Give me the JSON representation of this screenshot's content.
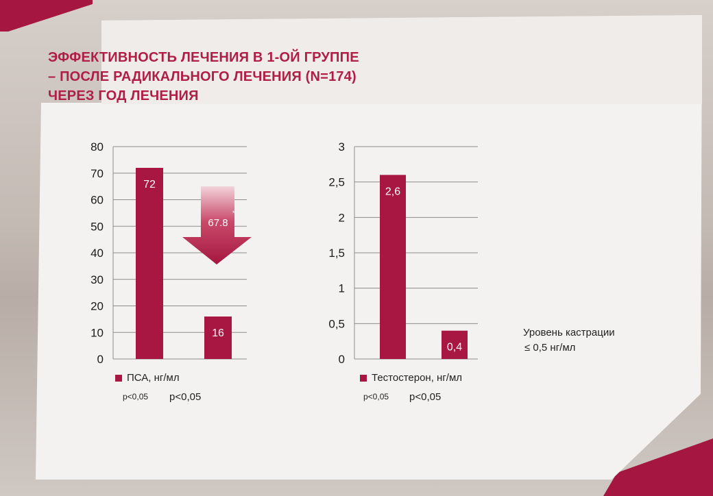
{
  "title_lines": [
    "ЭФФЕКТИВНОСТЬ ЛЕЧЕНИЯ В 1-ОЙ ГРУППЕ",
    "– ПОСЛЕ РАДИКАЛЬНОГО ЛЕЧЕНИЯ (N=174)",
    "ЧЕРЕЗ ГОД ЛЕЧЕНИЯ"
  ],
  "colors": {
    "accent": "#b01e45",
    "bar": "#a81642",
    "panel": "#f3f1f0",
    "gridline": "#8c8c8c"
  },
  "chart_data": [
    {
      "type": "bar",
      "categories": [
        "",
        ""
      ],
      "series": [
        {
          "name": "ПСА, нг/мл",
          "values": [
            72,
            16
          ]
        }
      ],
      "data_labels": [
        "72",
        "16"
      ],
      "yticks": [
        "0",
        "10",
        "20",
        "30",
        "40",
        "50",
        "60",
        "70",
        "80"
      ],
      "ylim": [
        0,
        80
      ],
      "grid": true,
      "legend_position": "bottom-left",
      "annotation": {
        "text": "67.8",
        "marker": "*",
        "shape": "down-arrow"
      }
    },
    {
      "type": "bar",
      "categories": [
        "",
        ""
      ],
      "series": [
        {
          "name": "Тестостерон, нг/мл",
          "values": [
            2.6,
            0.4
          ]
        }
      ],
      "data_labels": [
        "2,6",
        "0,4"
      ],
      "yticks": [
        "0",
        "0,5",
        "1",
        "1,5",
        "2",
        "2,5",
        "3"
      ],
      "ylim": [
        0,
        3
      ],
      "grid": true,
      "legend_position": "bottom-left"
    }
  ],
  "psa_stats": {
    "small": "p<0,05",
    "large": "p<0,05"
  },
  "testosterone_stats": {
    "small": "p<0,05",
    "large": "p<0,05"
  },
  "note_lines": [
    "Уровень кастрации",
    "≤ 0,5 нг/мл"
  ]
}
